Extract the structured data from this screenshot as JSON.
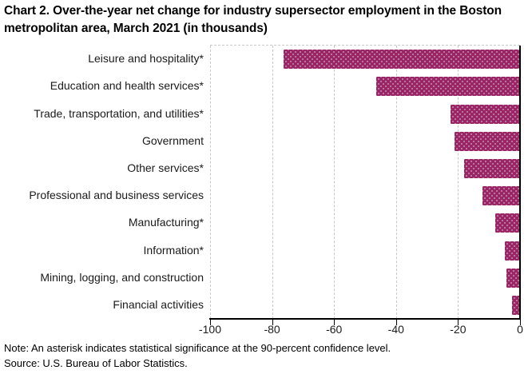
{
  "title": "Chart 2. Over-the-year net change for industry supersector employment in the Boston metropolitan area, March 2021 (in thousands)",
  "note": "Note: An asterisk indicates statistical significance at the 90-percent confidence level.",
  "source": "Source: U.S. Bureau of Labor Statistics.",
  "colors": {
    "bar": "#9a2466",
    "bar_dot": "#ba7fa0",
    "grid": "#c6c9c6",
    "axis": "#000000",
    "text": "#1a1a1a"
  },
  "chart_data": {
    "type": "bar",
    "orientation": "horizontal",
    "title": "Chart 2. Over-the-year net change for industry supersector employment in the Boston metropolitan area, March 2021 (in thousands)",
    "categories": [
      "Leisure and hospitality*",
      "Education and health services*",
      "Trade, transportation, and utilities*",
      "Government",
      "Other services*",
      "Professional and business services",
      "Manufacturing*",
      "Information*",
      "Mining, logging, and construction",
      "Financial activities"
    ],
    "values": [
      -76.3,
      -46.3,
      -22.4,
      -21.1,
      -18.1,
      -12.0,
      -8.1,
      -5.0,
      -4.5,
      -2.6
    ],
    "xlabel": "",
    "ylabel": "",
    "xlim": [
      -100,
      0
    ],
    "xticks": [
      -100,
      -80,
      -60,
      -40,
      -20,
      0
    ],
    "grid": "vertical-dashed",
    "legend": "none",
    "bar_texture": "dotted"
  }
}
